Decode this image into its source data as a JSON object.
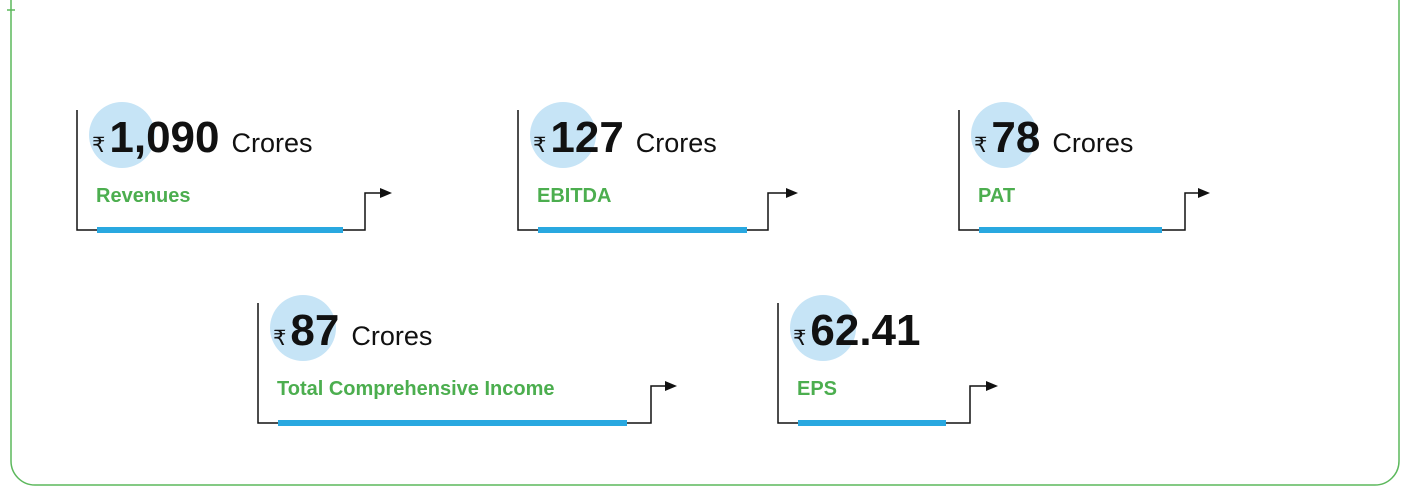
{
  "cards": [
    {
      "currency": "₹",
      "value": "1,090",
      "unit": "Crores",
      "label": "Revenues"
    },
    {
      "currency": "₹",
      "value": "127",
      "unit": "Crores",
      "label": "EBITDA"
    },
    {
      "currency": "₹",
      "value": "78",
      "unit": "Crores",
      "label": "PAT"
    },
    {
      "currency": "₹",
      "value": "87",
      "unit": "Crores",
      "label": "Total Comprehensive Income"
    },
    {
      "currency": "₹",
      "value": "62.41",
      "label": "EPS"
    }
  ]
}
